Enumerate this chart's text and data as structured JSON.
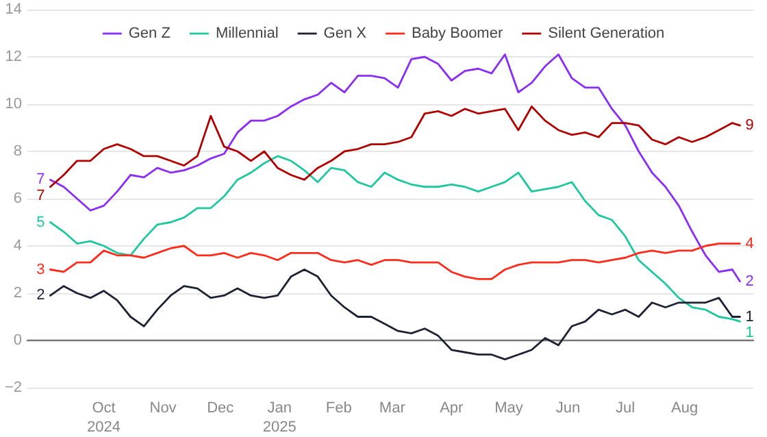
{
  "chart_data": {
    "type": "line",
    "x": [
      "2024-09-03",
      "2024-09-10",
      "2024-09-17",
      "2024-09-24",
      "2024-10-01",
      "2024-10-08",
      "2024-10-15",
      "2024-10-22",
      "2024-10-29",
      "2024-11-05",
      "2024-11-12",
      "2024-11-19",
      "2024-11-26",
      "2024-12-03",
      "2024-12-10",
      "2024-12-17",
      "2024-12-24",
      "2024-12-31",
      "2025-01-07",
      "2025-01-14",
      "2025-01-21",
      "2025-01-28",
      "2025-02-04",
      "2025-02-11",
      "2025-02-18",
      "2025-02-25",
      "2025-03-04",
      "2025-03-11",
      "2025-03-18",
      "2025-03-25",
      "2025-04-01",
      "2025-04-08",
      "2025-04-15",
      "2025-04-22",
      "2025-04-29",
      "2025-05-06",
      "2025-05-13",
      "2025-05-20",
      "2025-05-27",
      "2025-06-03",
      "2025-06-10",
      "2025-06-17",
      "2025-06-24",
      "2025-07-01",
      "2025-07-08",
      "2025-07-15",
      "2025-07-22",
      "2025-07-29",
      "2025-08-05",
      "2025-08-12",
      "2025-08-19",
      "2025-08-26",
      "2025-08-30"
    ],
    "series": [
      {
        "name": "Gen Z",
        "color": "#8b2cf5",
        "values": [
          6.8,
          6.5,
          6.0,
          5.5,
          5.7,
          6.3,
          7.0,
          6.9,
          7.3,
          7.1,
          7.2,
          7.4,
          7.7,
          7.9,
          8.8,
          9.3,
          9.3,
          9.5,
          9.9,
          10.2,
          10.4,
          10.9,
          10.5,
          11.2,
          11.2,
          11.1,
          10.7,
          11.9,
          12.0,
          11.7,
          11.0,
          11.4,
          11.5,
          11.3,
          12.1,
          10.5,
          10.9,
          11.6,
          12.1,
          11.1,
          10.7,
          10.7,
          9.8,
          9.1,
          8.0,
          7.1,
          6.5,
          5.7,
          4.6,
          3.6,
          2.9,
          3.0,
          2.5
        ],
        "value_labels": [
          "7",
          null,
          null,
          null,
          null,
          null,
          null,
          null,
          null,
          null,
          null,
          null,
          null,
          null,
          null,
          null,
          null,
          null,
          null,
          null,
          null,
          null,
          null,
          null,
          null,
          null,
          null,
          null,
          null,
          null,
          null,
          null,
          null,
          null,
          null,
          null,
          null,
          null,
          null,
          null,
          null,
          null,
          null,
          null,
          null,
          null,
          null,
          null,
          null,
          null,
          null,
          null,
          "2"
        ]
      },
      {
        "name": "Millennial",
        "color": "#1fc79f",
        "values": [
          5.0,
          4.6,
          4.1,
          4.2,
          4.0,
          3.7,
          3.6,
          4.3,
          4.9,
          5.0,
          5.2,
          5.6,
          5.6,
          6.1,
          6.8,
          7.1,
          7.5,
          7.8,
          7.6,
          7.2,
          6.7,
          7.3,
          7.2,
          6.7,
          6.5,
          7.1,
          6.8,
          6.6,
          6.5,
          6.5,
          6.6,
          6.5,
          6.3,
          6.5,
          6.7,
          7.1,
          6.3,
          6.4,
          6.5,
          6.7,
          5.9,
          5.3,
          5.1,
          4.4,
          3.4,
          2.9,
          2.4,
          1.8,
          1.4,
          1.3,
          1.0,
          0.9,
          0.8
        ],
        "value_labels": [
          "5",
          null,
          null,
          null,
          null,
          null,
          null,
          null,
          null,
          null,
          null,
          null,
          null,
          null,
          null,
          null,
          null,
          null,
          null,
          null,
          null,
          null,
          null,
          null,
          null,
          null,
          null,
          null,
          null,
          null,
          null,
          null,
          null,
          null,
          null,
          null,
          null,
          null,
          null,
          null,
          null,
          null,
          null,
          null,
          null,
          null,
          null,
          null,
          null,
          null,
          null,
          null,
          "1"
        ]
      },
      {
        "name": "Gen X",
        "color": "#1c2233",
        "values": [
          1.9,
          2.3,
          2.0,
          1.8,
          2.1,
          1.7,
          1.0,
          0.6,
          1.3,
          1.9,
          2.3,
          2.2,
          1.8,
          1.9,
          2.2,
          1.9,
          1.8,
          1.9,
          2.7,
          3.0,
          2.7,
          1.9,
          1.4,
          1.0,
          1.0,
          0.7,
          0.4,
          0.3,
          0.5,
          0.2,
          -0.4,
          -0.5,
          -0.6,
          -0.6,
          -0.8,
          -0.6,
          -0.4,
          0.1,
          -0.2,
          0.6,
          0.8,
          1.3,
          1.1,
          1.3,
          1.0,
          1.6,
          1.4,
          1.6,
          1.6,
          1.6,
          1.8,
          1.0,
          1.0
        ],
        "value_labels": [
          "2",
          null,
          null,
          null,
          null,
          null,
          null,
          null,
          null,
          null,
          null,
          null,
          null,
          null,
          null,
          null,
          null,
          null,
          null,
          null,
          null,
          null,
          null,
          null,
          null,
          null,
          null,
          null,
          null,
          null,
          null,
          null,
          null,
          null,
          null,
          null,
          null,
          null,
          null,
          null,
          null,
          null,
          null,
          null,
          null,
          null,
          null,
          null,
          null,
          null,
          null,
          null,
          "1"
        ]
      },
      {
        "name": "Baby Boomer",
        "color": "#ff2a1a",
        "values": [
          3.0,
          2.9,
          3.3,
          3.3,
          3.8,
          3.6,
          3.6,
          3.5,
          3.7,
          3.9,
          4.0,
          3.6,
          3.6,
          3.7,
          3.5,
          3.7,
          3.6,
          3.4,
          3.7,
          3.7,
          3.7,
          3.4,
          3.3,
          3.4,
          3.2,
          3.4,
          3.4,
          3.3,
          3.3,
          3.3,
          2.9,
          2.7,
          2.6,
          2.6,
          3.0,
          3.2,
          3.3,
          3.3,
          3.3,
          3.4,
          3.4,
          3.3,
          3.4,
          3.5,
          3.7,
          3.8,
          3.7,
          3.8,
          3.8,
          4.0,
          4.1,
          4.1,
          4.1
        ],
        "value_labels": [
          "3",
          null,
          null,
          null,
          null,
          null,
          null,
          null,
          null,
          null,
          null,
          null,
          null,
          null,
          null,
          null,
          null,
          null,
          null,
          null,
          null,
          null,
          null,
          null,
          null,
          null,
          null,
          null,
          null,
          null,
          null,
          null,
          null,
          null,
          null,
          null,
          null,
          null,
          null,
          null,
          null,
          null,
          null,
          null,
          null,
          null,
          null,
          null,
          null,
          null,
          null,
          null,
          "4"
        ]
      },
      {
        "name": "Silent Generation",
        "color": "#b00000",
        "values": [
          6.5,
          7.0,
          7.6,
          7.6,
          8.1,
          8.3,
          8.1,
          7.8,
          7.8,
          7.6,
          7.4,
          7.8,
          9.5,
          8.2,
          8.0,
          7.6,
          8.0,
          7.3,
          7.0,
          6.8,
          7.3,
          7.6,
          8.0,
          8.1,
          8.3,
          8.3,
          8.4,
          8.6,
          9.6,
          9.7,
          9.5,
          9.8,
          9.6,
          9.7,
          9.8,
          8.9,
          9.9,
          9.3,
          8.9,
          8.7,
          8.8,
          8.6,
          9.2,
          9.2,
          9.1,
          8.5,
          8.3,
          8.6,
          8.4,
          8.6,
          8.9,
          9.2,
          9.1
        ],
        "value_labels": [
          "7",
          null,
          null,
          null,
          null,
          null,
          null,
          null,
          null,
          null,
          null,
          null,
          null,
          null,
          null,
          null,
          null,
          null,
          null,
          null,
          null,
          null,
          null,
          null,
          null,
          null,
          null,
          null,
          null,
          null,
          null,
          null,
          null,
          null,
          null,
          null,
          null,
          null,
          null,
          null,
          null,
          null,
          null,
          null,
          null,
          null,
          null,
          null,
          null,
          null,
          null,
          null,
          "9"
        ]
      }
    ],
    "xlim": [
      "2024-08-22",
      "2025-09-06"
    ],
    "xticks": [
      {
        "value": "2024-10-01",
        "label": "Oct\n2024"
      },
      {
        "value": "2024-11-01",
        "label": "Nov"
      },
      {
        "value": "2024-12-01",
        "label": "Dec"
      },
      {
        "value": "2025-01-01",
        "label": "Jan\n2025"
      },
      {
        "value": "2025-02-01",
        "label": "Feb"
      },
      {
        "value": "2025-03-01",
        "label": "Mar"
      },
      {
        "value": "2025-04-01",
        "label": "Apr"
      },
      {
        "value": "2025-05-01",
        "label": "May"
      },
      {
        "value": "2025-06-01",
        "label": "Jun"
      },
      {
        "value": "2025-07-01",
        "label": "Jul"
      },
      {
        "value": "2025-08-01",
        "label": "Aug"
      }
    ],
    "ylim": [
      -2,
      14
    ],
    "yticks": [
      {
        "value": -2,
        "label": "−2"
      },
      0,
      2,
      4,
      6,
      8,
      10,
      12,
      14
    ],
    "grid": "y",
    "legend": "top",
    "marker": "none",
    "line_style": "solid"
  }
}
